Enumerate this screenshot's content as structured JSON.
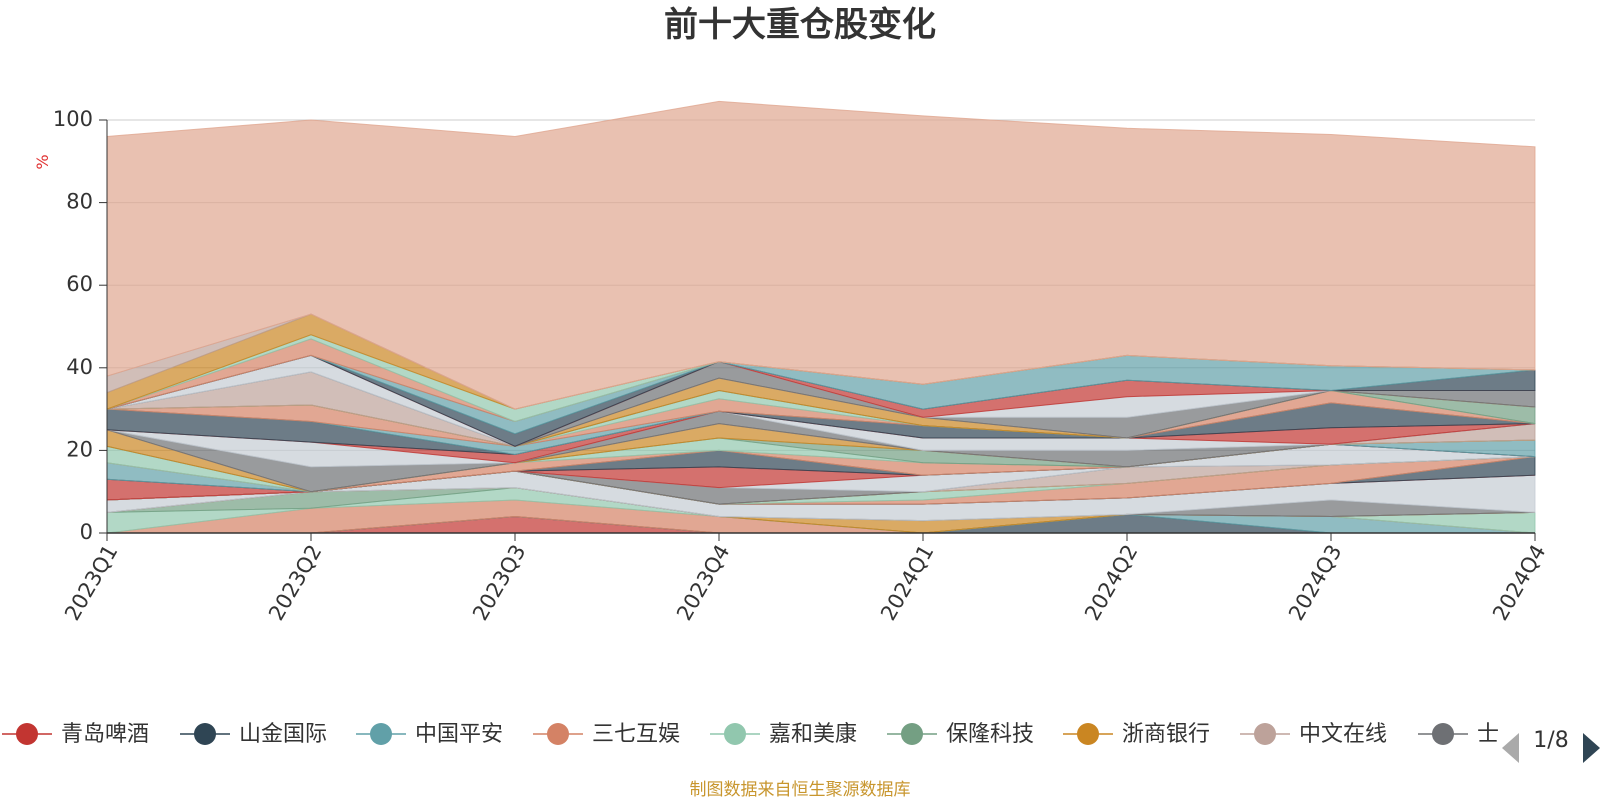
{
  "chart_data": {
    "type": "area",
    "title": "前十大重仓股变化",
    "ylabel": "%",
    "ylim": [
      0,
      100
    ],
    "yticks": [
      0,
      20,
      40,
      60,
      80,
      100
    ],
    "grid": true,
    "categories": [
      "2023Q1",
      "2023Q2",
      "2023Q3",
      "2023Q4",
      "2024Q1",
      "2024Q2",
      "2024Q3",
      "2024Q4"
    ],
    "layers": [
      {
        "color": "#c23531",
        "values": [
          0,
          0,
          4,
          0,
          0,
          0,
          0,
          0
        ]
      },
      {
        "color": "#2f4554",
        "values": [
          0,
          0,
          0,
          0,
          0,
          4.5,
          0,
          0
        ]
      },
      {
        "color": "#61a0a8",
        "values": [
          0,
          0,
          0,
          0,
          0,
          0,
          4,
          0
        ]
      },
      {
        "color": "#d48265",
        "values": [
          0,
          6,
          4,
          4,
          0,
          0,
          0,
          0
        ]
      },
      {
        "color": "#91c7ae",
        "values": [
          5,
          0,
          3,
          0,
          0,
          0,
          0,
          5
        ]
      },
      {
        "color": "#749f83",
        "values": [
          0,
          4,
          0,
          0,
          0,
          0,
          0,
          0
        ]
      },
      {
        "color": "#ca8622",
        "values": [
          0,
          0,
          0,
          0,
          3,
          0,
          0,
          0
        ]
      },
      {
        "color": "#bda29a",
        "values": [
          0,
          0,
          0,
          0,
          0,
          0,
          0,
          0
        ]
      },
      {
        "color": "#6e7074",
        "values": [
          0,
          0,
          0,
          0,
          0,
          0,
          4,
          0
        ]
      },
      {
        "color": "#c4ccd3",
        "values": [
          3,
          0,
          4,
          3,
          4,
          4,
          4,
          9
        ]
      },
      {
        "color": "#c23531",
        "values": [
          0,
          0,
          0,
          0,
          0,
          0,
          0,
          0
        ]
      },
      {
        "color": "#2f4554",
        "values": [
          0,
          0,
          0,
          0,
          0,
          0,
          0,
          4.5
        ]
      },
      {
        "color": "#61a0a8",
        "values": [
          0,
          0,
          0,
          0,
          0,
          0,
          0,
          0
        ]
      },
      {
        "color": "#d48265",
        "values": [
          0,
          0,
          0,
          0,
          1,
          3.5,
          4.5,
          0
        ]
      },
      {
        "color": "#91c7ae",
        "values": [
          0,
          0,
          0,
          0,
          2,
          0,
          0,
          0
        ]
      },
      {
        "color": "#749f83",
        "values": [
          0,
          0,
          0,
          0,
          0,
          0,
          0,
          0
        ]
      },
      {
        "color": "#ca8622",
        "values": [
          0,
          0,
          0,
          0,
          0,
          0,
          0,
          0
        ]
      },
      {
        "color": "#bda29a",
        "values": [
          0,
          0,
          0,
          0,
          0,
          4,
          0,
          0
        ]
      },
      {
        "color": "#6e7074",
        "values": [
          0,
          0,
          0,
          4,
          0,
          0,
          0,
          0
        ]
      },
      {
        "color": "#c4ccd3",
        "values": [
          0,
          0,
          0,
          0,
          4,
          0,
          5,
          0
        ]
      },
      {
        "color": "#c23531",
        "values": [
          5,
          0,
          0,
          5,
          0,
          0,
          0,
          0
        ]
      },
      {
        "color": "#2f4554",
        "values": [
          0,
          0,
          0,
          4,
          0,
          0,
          0,
          0
        ]
      },
      {
        "color": "#61a0a8",
        "values": [
          4,
          0,
          0,
          0,
          0,
          0,
          0,
          4
        ]
      },
      {
        "color": "#d48265",
        "values": [
          0,
          0,
          2,
          0,
          3,
          0,
          0,
          0
        ]
      },
      {
        "color": "#91c7ae",
        "values": [
          4,
          0,
          0,
          3,
          0,
          0,
          0,
          0
        ]
      },
      {
        "color": "#749f83",
        "values": [
          0,
          0,
          0,
          0,
          3,
          0,
          0,
          0
        ]
      },
      {
        "color": "#ca8622",
        "values": [
          4,
          0,
          0,
          3.5,
          0,
          0,
          0,
          0
        ]
      },
      {
        "color": "#bda29a",
        "values": [
          0,
          0,
          0,
          0,
          0,
          0,
          0,
          4
        ]
      },
      {
        "color": "#6e7074",
        "values": [
          0,
          6,
          0,
          3,
          0,
          4,
          0,
          0
        ]
      },
      {
        "color": "#c4ccd3",
        "values": [
          0,
          6,
          0,
          0,
          3,
          3,
          0,
          0
        ]
      },
      {
        "color": "#c23531",
        "values": [
          0,
          0,
          2,
          0,
          0,
          0,
          4,
          0
        ]
      },
      {
        "color": "#2f4554",
        "values": [
          5,
          5,
          0,
          0,
          3,
          0,
          6,
          0
        ]
      },
      {
        "color": "#61a0a8",
        "values": [
          0,
          0,
          2,
          0,
          0,
          0,
          0,
          0
        ]
      },
      {
        "color": "#d48265",
        "values": [
          0,
          4,
          0,
          3,
          0,
          0,
          3,
          0
        ]
      },
      {
        "color": "#91c7ae",
        "values": [
          0,
          0,
          0,
          2,
          0,
          0,
          0,
          0
        ]
      },
      {
        "color": "#749f83",
        "values": [
          0,
          0,
          0,
          0,
          0,
          0,
          0,
          4
        ]
      },
      {
        "color": "#ca8622",
        "values": [
          0,
          0,
          0,
          3,
          2,
          0,
          0,
          0
        ]
      },
      {
        "color": "#bda29a",
        "values": [
          0,
          8,
          0,
          0,
          0,
          0,
          0,
          0
        ]
      },
      {
        "color": "#6e7074",
        "values": [
          0,
          0,
          0,
          4,
          0,
          5,
          0,
          4
        ]
      },
      {
        "color": "#c4ccd3",
        "values": [
          0,
          4,
          0,
          0,
          0,
          5,
          0,
          0
        ]
      },
      {
        "color": "#c23531",
        "values": [
          0,
          0,
          0,
          0,
          2,
          4,
          0,
          0
        ]
      },
      {
        "color": "#2f4554",
        "values": [
          0,
          0,
          3,
          0,
          0,
          0,
          0,
          5
        ]
      },
      {
        "color": "#61a0a8",
        "values": [
          0,
          0,
          3,
          0,
          6,
          6,
          6,
          0
        ]
      },
      {
        "color": "#d48265",
        "values": [
          0,
          4,
          0,
          0,
          0,
          0,
          0,
          0
        ]
      },
      {
        "color": "#91c7ae",
        "values": [
          0,
          1,
          3,
          0,
          0,
          0,
          0,
          0
        ]
      },
      {
        "color": "#ca8622",
        "values": [
          4,
          5,
          0,
          0,
          0,
          0,
          0,
          0
        ]
      },
      {
        "color": "#bda29a",
        "values": [
          4,
          0,
          0,
          0,
          0,
          0,
          0,
          0
        ]
      },
      {
        "color": "#e0a690",
        "values": [
          58,
          47,
          66,
          63,
          65,
          55,
          56,
          54
        ]
      }
    ]
  },
  "legend": {
    "items": [
      {
        "label": "青岛啤酒",
        "color": "#c23531"
      },
      {
        "label": "山金国际",
        "color": "#2f4554"
      },
      {
        "label": "中国平安",
        "color": "#61a0a8"
      },
      {
        "label": "三七互娱",
        "color": "#d48265"
      },
      {
        "label": "嘉和美康",
        "color": "#91c7ae"
      },
      {
        "label": "保隆科技",
        "color": "#749f83"
      },
      {
        "label": "浙商银行",
        "color": "#ca8622"
      },
      {
        "label": "中文在线",
        "color": "#bda29a"
      },
      {
        "label": "士",
        "color": "#6e7074"
      }
    ],
    "page": "1/8"
  },
  "footer": "制图数据来自恒生聚源数据库"
}
